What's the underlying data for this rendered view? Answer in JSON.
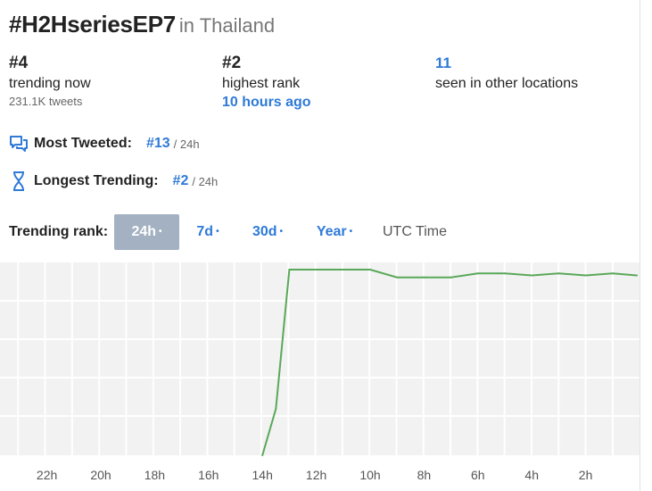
{
  "header": {
    "hashtag": "#H2HseriesEP7",
    "location": "in Thailand"
  },
  "stats": {
    "current_rank": "#4",
    "current_label": "trending now",
    "tweets": "231.1K tweets",
    "highest_rank": "#2",
    "highest_label": "highest rank",
    "highest_time": "10 hours ago",
    "other_locations": "11",
    "other_label": "seen in other locations"
  },
  "most_tweeted": {
    "label": "Most Tweeted:",
    "rank": "#13",
    "period": "/ 24h"
  },
  "longest_trending": {
    "label": "Longest Trending:",
    "rank": "#2",
    "period": "/ 24h"
  },
  "rank_tabs": {
    "label": "Trending rank:",
    "tabs": [
      {
        "label": "24h",
        "dot": "•",
        "active": true
      },
      {
        "label": "7d",
        "dot": "•",
        "active": false
      },
      {
        "label": "30d",
        "dot": "•",
        "active": false
      },
      {
        "label": "Year",
        "dot": "•",
        "active": false
      }
    ],
    "timezone": "UTC Time"
  },
  "colors": {
    "accent": "#2f7ad8",
    "line": "#5aa85a",
    "active_tab": "#a3b1c2",
    "grid_bg": "#f2f2f2"
  },
  "chart_data": {
    "type": "line",
    "title": "",
    "xlabel": "",
    "ylabel": "",
    "x_tick_labels": [
      "22h",
      "20h",
      "18h",
      "16h",
      "14h",
      "12h",
      "10h",
      "8h",
      "6h",
      "4h",
      "2h"
    ],
    "x_hours_ago": [
      24,
      23,
      22,
      21,
      20,
      19,
      18,
      17,
      16,
      15,
      14,
      13.5,
      13,
      12,
      11,
      10,
      9,
      8,
      7,
      6,
      5,
      4,
      3,
      2,
      1,
      0.1
    ],
    "series": [
      {
        "values": [
          null,
          null,
          null,
          null,
          null,
          null,
          null,
          null,
          null,
          null,
          50,
          38,
          2,
          2,
          2,
          2,
          4,
          4,
          4,
          3,
          3,
          3.5,
          3,
          3.5,
          3,
          3.5
        ]
      }
    ],
    "ylim": [
      0,
      50
    ],
    "y_inverted": true,
    "grid": true
  }
}
